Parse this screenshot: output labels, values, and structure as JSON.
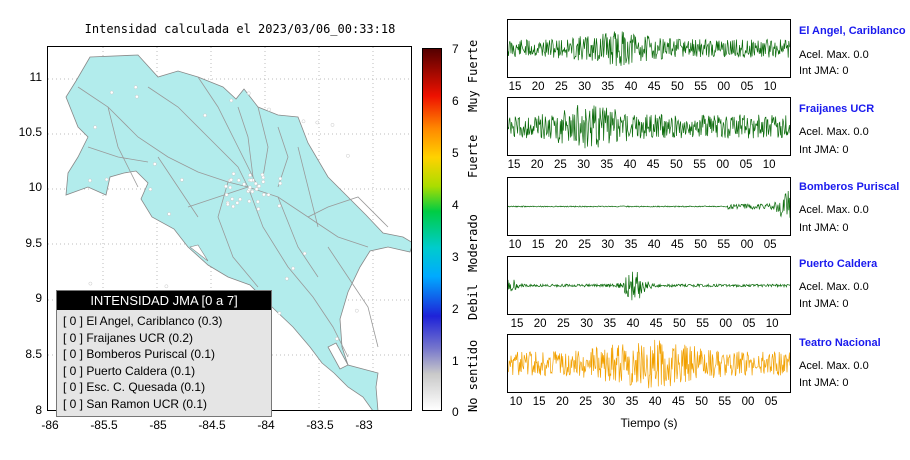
{
  "map": {
    "title": "Intensidad calculada el 2023/03/06_00:33:18",
    "lat_labels": [
      "11",
      "10.5",
      "10",
      "9.5",
      "9",
      "8.5",
      "8"
    ],
    "lon_labels": [
      "-86",
      "-85.5",
      "-85",
      "-84.5",
      "-84",
      "-83.5",
      "-83"
    ],
    "land_color": "#b2ecec",
    "road_color": "#999999",
    "station_color": "#ffffff"
  },
  "colorbar": {
    "ticks": [
      "7",
      "6",
      "5",
      "4",
      "3",
      "2",
      "1",
      "0"
    ],
    "words": [
      "Muy Fuerte",
      "Fuerte",
      "Moderado",
      "Debil",
      "No sentido"
    ]
  },
  "legend": {
    "title": "INTENSIDAD JMA [0 a 7]",
    "rows": [
      "[ 0 ]  El Angel, Cariblanco (0.3)",
      "[ 0 ]  Fraijanes UCR (0.2)",
      "[ 0 ]  Bomberos Puriscal (0.1)",
      "[ 0 ]  Puerto Caldera (0.1)",
      "[ 0 ]  Esc. C. Quesada (0.1)",
      "[ 0 ]  San Ramon UCR (0.1)"
    ]
  },
  "stations": [
    {
      "name": "El Angel, Cariblanco",
      "acel": "Acel. Max. 0.0",
      "jma": "Int JMA: 0",
      "color": "#0b6b0b",
      "ticks": [
        "15",
        "20",
        "25",
        "30",
        "35",
        "40",
        "45",
        "50",
        "55",
        "00",
        "05",
        "10"
      ],
      "tick_offset": 0
    },
    {
      "name": "Fraijanes UCR",
      "acel": "Acel. Max. 0.0",
      "jma": "Int JMA: 0",
      "color": "#0b6b0b",
      "ticks": [
        "15",
        "20",
        "25",
        "30",
        "35",
        "40",
        "45",
        "50",
        "55",
        "00",
        "05",
        "10"
      ],
      "tick_offset": -1
    },
    {
      "name": "Bomberos Puriscal",
      "acel": "Acel. Max. 0.0",
      "jma": "Int JMA: 0",
      "color": "#0b6b0b",
      "ticks": [
        "10",
        "15",
        "20",
        "25",
        "30",
        "35",
        "40",
        "45",
        "50",
        "55",
        "00",
        "05"
      ],
      "tick_offset": 0
    },
    {
      "name": "Puerto Caldera",
      "acel": "Acel. Max. 0.0",
      "jma": "Int JMA: 0",
      "color": "#0b6b0b",
      "ticks": [
        "15",
        "20",
        "25",
        "30",
        "35",
        "40",
        "45",
        "50",
        "55",
        "00",
        "05",
        "10"
      ],
      "tick_offset": 2
    },
    {
      "name": "Teatro Nacional",
      "acel": "Acel. Max. 0.0",
      "jma": "Int JMA: 0",
      "color": "#f2a100",
      "ticks": [
        "10",
        "15",
        "20",
        "25",
        "30",
        "35",
        "40",
        "45",
        "50",
        "55",
        "00",
        "05"
      ],
      "tick_offset": 1
    }
  ],
  "waveform_xlabel": "Tiempo (s)"
}
